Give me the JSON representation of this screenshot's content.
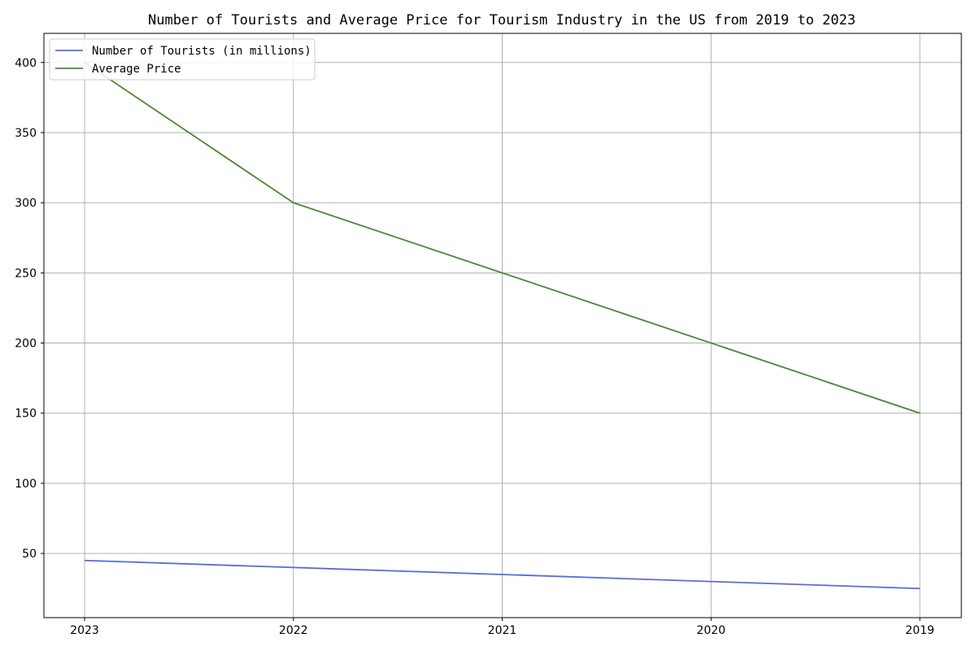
{
  "chart_data": {
    "type": "line",
    "title": "Number of Tourists and Average Price for Tourism Industry in the US from 2019 to 2023",
    "xlabel": "",
    "ylabel": "",
    "categories": [
      "2023",
      "2022",
      "2021",
      "2020",
      "2019"
    ],
    "series": [
      {
        "name": "Number of Tourists (in millions)",
        "values": [
          45,
          40,
          35,
          30,
          25
        ],
        "color": "#5a6bd4"
      },
      {
        "name": "Average Price",
        "values": [
          400,
          300,
          250,
          200,
          150
        ],
        "color": "#4d8734"
      }
    ],
    "yticks": [
      50,
      100,
      150,
      200,
      250,
      300,
      350,
      400
    ],
    "ylim": [
      4.25,
      420.75
    ],
    "grid": true,
    "legend_position": "upper left"
  }
}
